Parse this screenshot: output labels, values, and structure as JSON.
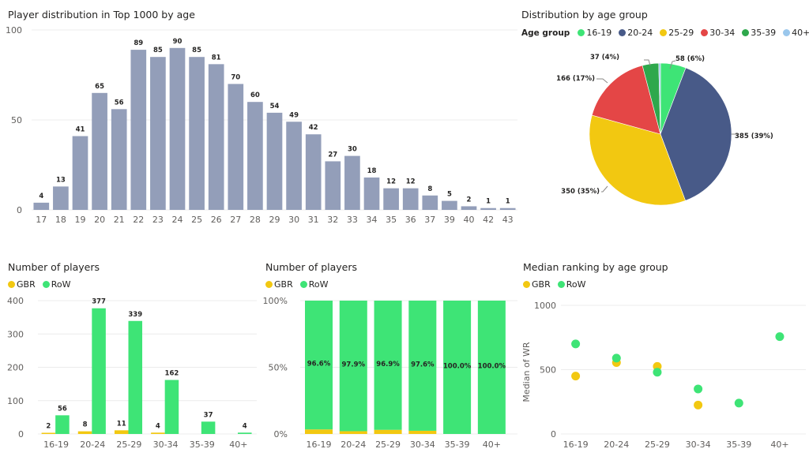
{
  "colors": {
    "bar_main": "#939eb9",
    "g16_19": "#3ee476",
    "g20_24": "#485a88",
    "g25_29": "#f2c811",
    "g30_34": "#e44646",
    "g35_39": "#2ea84c",
    "g40p": "#9ac7ec",
    "gbr": "#f2c811",
    "row": "#3ee476",
    "leader": "#8a8886"
  },
  "chart_data": [
    {
      "id": "age-dist",
      "type": "bar",
      "title": "Player distribution in Top 1000 by age",
      "categories": [
        "17",
        "18",
        "19",
        "20",
        "21",
        "22",
        "23",
        "24",
        "25",
        "26",
        "27",
        "28",
        "29",
        "30",
        "31",
        "32",
        "33",
        "34",
        "35",
        "36",
        "37",
        "39",
        "40",
        "42",
        "43"
      ],
      "values": [
        4,
        13,
        41,
        65,
        56,
        89,
        85,
        90,
        85,
        81,
        70,
        60,
        54,
        49,
        42,
        27,
        30,
        18,
        12,
        12,
        8,
        5,
        2,
        1,
        1
      ],
      "xlabel": "",
      "ylabel": "",
      "ylim": [
        0,
        100
      ],
      "yticks": [
        "0",
        "50",
        "100"
      ],
      "grid": true
    },
    {
      "id": "pie",
      "type": "pie",
      "title": "Distribution by age group",
      "legend_title": "Age group",
      "legend_position": "top-left",
      "slices": [
        {
          "label": "16-19",
          "value": 58,
          "display": "58 (6%)",
          "color_key": "g16_19"
        },
        {
          "label": "20-24",
          "value": 385,
          "display": "385 (39%)",
          "color_key": "g20_24"
        },
        {
          "label": "25-29",
          "value": 350,
          "display": "350 (35%)",
          "color_key": "g25_29"
        },
        {
          "label": "30-34",
          "value": 166,
          "display": "166 (17%)",
          "color_key": "g30_34"
        },
        {
          "label": "35-39",
          "value": 37,
          "display": "37 (4%)",
          "color_key": "g35_39"
        },
        {
          "label": "40+",
          "value": 4,
          "display": "",
          "color_key": "g40p"
        }
      ]
    },
    {
      "id": "clustered",
      "type": "bar",
      "title": "Number of players",
      "legend_position": "top-left",
      "categories": [
        "16-19",
        "20-24",
        "25-29",
        "30-34",
        "35-39",
        "40+"
      ],
      "series": [
        {
          "name": "GBR",
          "values": [
            2,
            8,
            11,
            4,
            null,
            null
          ]
        },
        {
          "name": "RoW",
          "values": [
            56,
            377,
            339,
            162,
            37,
            4
          ]
        }
      ],
      "ylim": [
        0,
        400
      ],
      "yticks": [
        "0",
        "100",
        "200",
        "300",
        "400"
      ],
      "grid": true
    },
    {
      "id": "stacked",
      "type": "bar",
      "title": "Number of players",
      "legend_position": "top-left",
      "stacked_percent": true,
      "categories": [
        "16-19",
        "20-24",
        "25-29",
        "30-34",
        "35-39",
        "40+"
      ],
      "series": [
        {
          "name": "GBR",
          "values": [
            3.4,
            2.1,
            3.1,
            2.4,
            0,
            0
          ]
        },
        {
          "name": "RoW",
          "values": [
            96.6,
            97.9,
            96.9,
            97.6,
            100.0,
            100.0
          ],
          "labels": [
            "96.6%",
            "97.9%",
            "96.9%",
            "97.6%",
            "100.0%",
            "100.0%"
          ]
        }
      ],
      "ylim": [
        0,
        100
      ],
      "yticks": [
        "0%",
        "50%",
        "100%"
      ],
      "grid": true
    },
    {
      "id": "scatter",
      "type": "scatter",
      "title": "Median ranking by age group",
      "legend_position": "top-left",
      "categories": [
        "16-19",
        "20-24",
        "25-29",
        "30-34",
        "35-39",
        "40+"
      ],
      "series": [
        {
          "name": "GBR",
          "values": [
            450,
            555,
            525,
            225,
            null,
            null
          ]
        },
        {
          "name": "RoW",
          "values": [
            700,
            590,
            480,
            350,
            240,
            757
          ]
        }
      ],
      "ylabel": "Median of WR",
      "ylim": [
        0,
        1000
      ],
      "yticks": [
        "0",
        "500",
        "1000"
      ],
      "grid": true
    }
  ],
  "legends": {
    "pie": {
      "title": "Age group",
      "items": [
        "16-19",
        "20-24",
        "25-29",
        "30-34",
        "35-39",
        "40+"
      ]
    },
    "series": [
      "GBR",
      "RoW"
    ]
  }
}
